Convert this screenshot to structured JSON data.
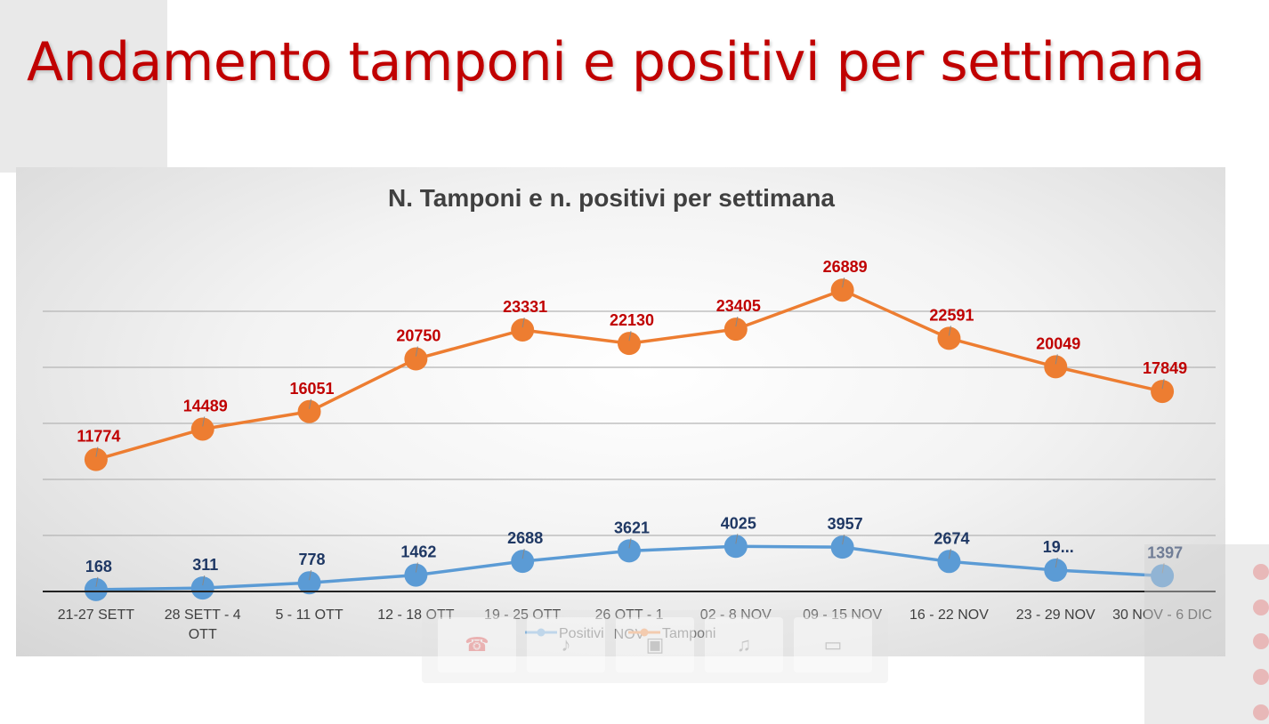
{
  "slide": {
    "title": "Andamento tamponi e positivi per settimana"
  },
  "chart_data": {
    "type": "line",
    "title": "N. Tamponi e n. positivi per settimana",
    "categories": [
      [
        "21-27 SETT"
      ],
      [
        "28 SETT - 4",
        "OTT"
      ],
      [
        "5 - 11 OTT"
      ],
      [
        "12 - 18 OTT"
      ],
      [
        "19 - 25 OTT"
      ],
      [
        "26 OTT - 1",
        "NOV"
      ],
      [
        "02 - 8 NOV"
      ],
      [
        "09 - 15 NOV"
      ],
      [
        "16 - 22 NOV"
      ],
      [
        "23 - 29 NOV"
      ],
      [
        "30 NOV - 6 DIC"
      ]
    ],
    "series": [
      {
        "name": "Positivi",
        "color": "#5b9bd5",
        "label_color": "#1f3864",
        "values": [
          168,
          311,
          778,
          1462,
          2688,
          3621,
          4025,
          3957,
          2674,
          1900,
          1397
        ],
        "labels": [
          "168",
          "311",
          "778",
          "1462",
          "2688",
          "3621",
          "4025",
          "3957",
          "2674",
          "19...",
          "1397"
        ]
      },
      {
        "name": "Tamponi",
        "color": "#ed7d31",
        "label_color": "#c00000",
        "values": [
          11774,
          14489,
          16051,
          20750,
          23331,
          22130,
          23405,
          26889,
          22591,
          20049,
          17849
        ],
        "labels": [
          "11774",
          "14489",
          "16051",
          "20750",
          "23331",
          "22130",
          "23405",
          "26889",
          "22591",
          "20049",
          "17849"
        ]
      }
    ],
    "ylim": [
      0,
      30000
    ],
    "grid": true,
    "legend": "bottom"
  },
  "toolbar": {
    "buttons": [
      {
        "name": "hangup-button",
        "icon": "phone-hangup-icon",
        "glyph": "☎"
      },
      {
        "name": "mic-button",
        "icon": "microphone-icon",
        "glyph": "♪"
      },
      {
        "name": "camera-button",
        "icon": "camera-off-icon",
        "glyph": "▣"
      },
      {
        "name": "speaker-button",
        "icon": "speaker-mute-icon",
        "glyph": "♫"
      },
      {
        "name": "screen-share-button",
        "icon": "screen-share-icon",
        "glyph": "▭"
      }
    ]
  }
}
